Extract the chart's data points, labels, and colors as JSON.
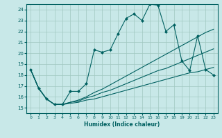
{
  "xlabel": "Humidex (Indice chaleur)",
  "bg_color": "#c8e8e8",
  "grid_color": "#a0c8c0",
  "line_color": "#006060",
  "xlim": [
    -0.5,
    23.5
  ],
  "ylim": [
    14.5,
    24.5
  ],
  "yticks": [
    15,
    16,
    17,
    18,
    19,
    20,
    21,
    22,
    23,
    24
  ],
  "xticks": [
    0,
    1,
    2,
    3,
    4,
    5,
    6,
    7,
    8,
    9,
    10,
    11,
    12,
    13,
    14,
    15,
    16,
    17,
    18,
    19,
    20,
    21,
    22,
    23
  ],
  "lines": [
    {
      "x": [
        0,
        1,
        2,
        3,
        4,
        5,
        6,
        7,
        8,
        9,
        10,
        11,
        12,
        13,
        14,
        15,
        16,
        17,
        18,
        19,
        20,
        21,
        22,
        23
      ],
      "y": [
        18.5,
        16.8,
        15.8,
        15.3,
        15.3,
        16.5,
        16.5,
        17.2,
        20.3,
        20.1,
        20.3,
        21.8,
        23.2,
        23.6,
        23.0,
        24.5,
        24.4,
        22.0,
        22.6,
        19.3,
        18.4,
        21.6,
        18.5,
        18.0
      ],
      "has_markers": true
    },
    {
      "x": [
        0,
        1,
        2,
        3,
        4,
        5,
        6,
        7,
        8,
        9,
        10,
        11,
        12,
        13,
        14,
        15,
        16,
        17,
        18,
        19,
        20,
        21,
        22,
        23
      ],
      "y": [
        18.5,
        16.8,
        15.8,
        15.3,
        15.3,
        15.5,
        15.7,
        16.0,
        16.4,
        16.7,
        17.1,
        17.5,
        17.9,
        18.3,
        18.7,
        19.1,
        19.5,
        19.9,
        20.3,
        20.7,
        21.1,
        21.5,
        21.9,
        22.2
      ],
      "has_markers": false
    },
    {
      "x": [
        0,
        1,
        2,
        3,
        4,
        5,
        6,
        7,
        8,
        9,
        10,
        11,
        12,
        13,
        14,
        15,
        16,
        17,
        18,
        19,
        20,
        21,
        22,
        23
      ],
      "y": [
        18.5,
        16.8,
        15.8,
        15.3,
        15.3,
        15.5,
        15.6,
        15.9,
        16.1,
        16.4,
        16.6,
        16.9,
        17.2,
        17.5,
        17.8,
        18.1,
        18.4,
        18.6,
        18.9,
        19.2,
        19.5,
        19.8,
        20.1,
        20.4
      ],
      "has_markers": false
    },
    {
      "x": [
        0,
        1,
        2,
        3,
        4,
        5,
        6,
        7,
        8,
        9,
        10,
        11,
        12,
        13,
        14,
        15,
        16,
        17,
        18,
        19,
        20,
        21,
        22,
        23
      ],
      "y": [
        18.5,
        16.8,
        15.8,
        15.3,
        15.3,
        15.4,
        15.5,
        15.7,
        15.8,
        16.0,
        16.2,
        16.4,
        16.6,
        16.8,
        17.0,
        17.2,
        17.4,
        17.6,
        17.8,
        18.0,
        18.2,
        18.3,
        18.5,
        18.7
      ],
      "has_markers": false
    }
  ]
}
